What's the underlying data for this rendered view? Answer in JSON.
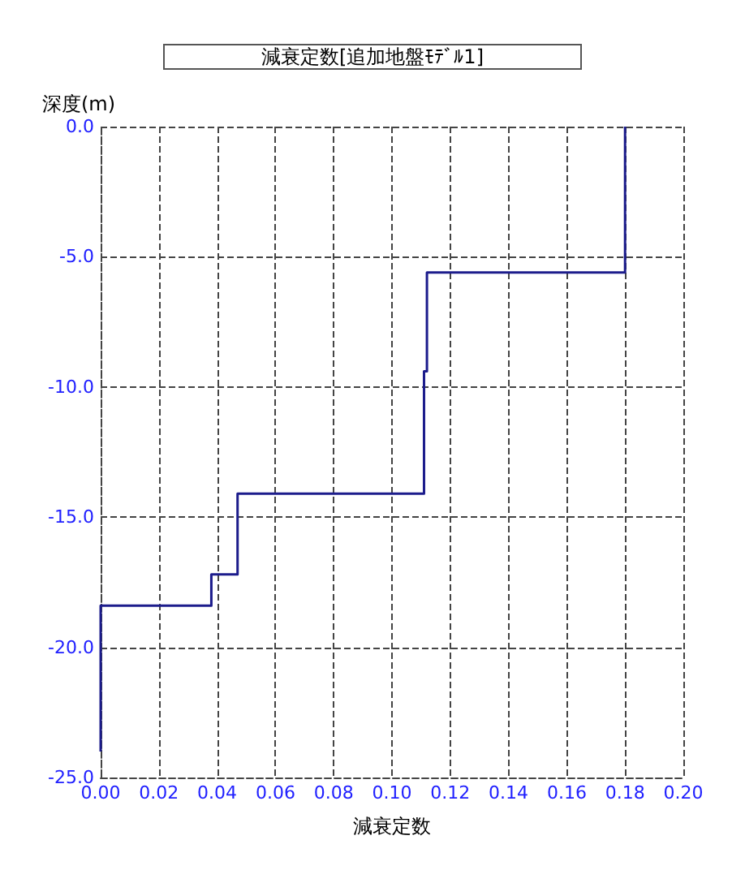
{
  "chart_data": {
    "type": "line",
    "title": "減衰定数[追加地盤ﾓﾃﾞﾙ1]",
    "xlabel": "減衰定数",
    "ylabel": "深度(m)",
    "x": [
      0.18,
      0.18,
      0.112,
      0.112,
      0.111,
      0.111,
      0.047,
      0.047,
      0.038,
      0.038,
      0,
      0
    ],
    "series": [
      {
        "color": "#1c1c8c",
        "values": [
          0,
          -5.6,
          -5.6,
          -9.4,
          -9.4,
          -14.1,
          -14.1,
          -17.2,
          -17.2,
          -18.4,
          -18.4,
          -24
        ]
      }
    ],
    "xlim": [
      0,
      0.2
    ],
    "xticks": [
      {
        "value": 0,
        "label": "0.00"
      },
      {
        "value": 0.02,
        "label": "0.02"
      },
      {
        "value": 0.04,
        "label": "0.04"
      },
      {
        "value": 0.06,
        "label": "0.06"
      },
      {
        "value": 0.08,
        "label": "0.08"
      },
      {
        "value": 0.1,
        "label": "0.10"
      },
      {
        "value": 0.12,
        "label": "0.12"
      },
      {
        "value": 0.14,
        "label": "0.14"
      },
      {
        "value": 0.16,
        "label": "0.16"
      },
      {
        "value": 0.18,
        "label": "0.18"
      },
      {
        "value": 0.2,
        "label": "0.20"
      }
    ],
    "ylim": [
      -25,
      0
    ],
    "yticks": [
      {
        "value": -25,
        "label": "-25.0"
      },
      {
        "value": -20,
        "label": "-20.0"
      },
      {
        "value": -15,
        "label": "-15.0"
      },
      {
        "value": -10,
        "label": "-10.0"
      },
      {
        "value": -5,
        "label": "-5.0"
      },
      {
        "value": 0,
        "label": "0.0"
      }
    ],
    "grid": true,
    "marker": "none",
    "line_style": "solid"
  }
}
